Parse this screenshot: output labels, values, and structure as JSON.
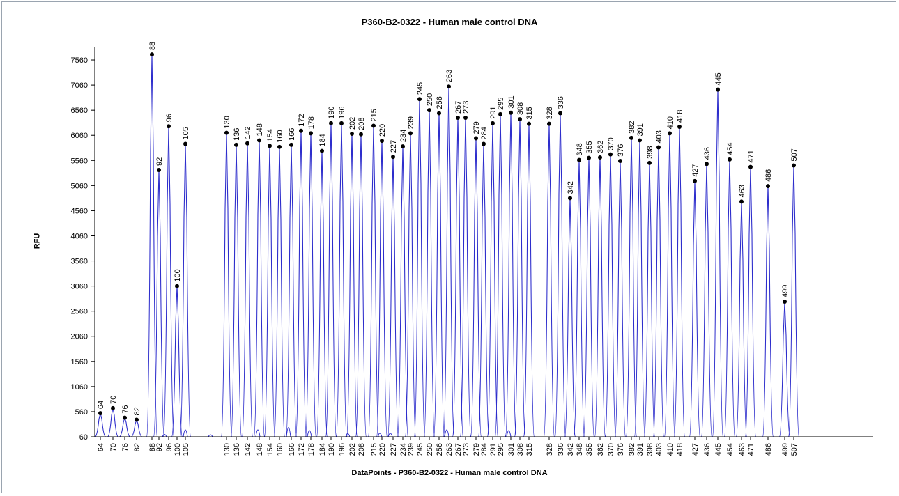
{
  "chart_data": {
    "type": "line",
    "title": "P360-B2-0322 - Human male control DNA",
    "xlabel": "DataPoints - P360-B2-0322 - Human male control DNA",
    "ylabel": "RFU",
    "ylim": [
      60,
      7810
    ],
    "yticks": [
      60,
      560,
      1060,
      1560,
      2060,
      2560,
      3060,
      3560,
      4060,
      4560,
      5060,
      5560,
      6060,
      6560,
      7060,
      7560
    ],
    "grid": false,
    "legend": "none",
    "line_color": "#2d2dcc",
    "peaks": [
      {
        "label": "64",
        "value": 530
      },
      {
        "label": "70",
        "value": 630
      },
      {
        "label": "76",
        "value": 440
      },
      {
        "label": "82",
        "value": 400
      },
      {
        "label": "88",
        "value": 7670
      },
      {
        "label": "92",
        "value": 5370
      },
      {
        "label": "96",
        "value": 6240
      },
      {
        "label": "100",
        "value": 3060
      },
      {
        "label": "105",
        "value": 5890
      },
      {
        "label": "130",
        "value": 6110
      },
      {
        "label": "136",
        "value": 5870
      },
      {
        "label": "142",
        "value": 5900
      },
      {
        "label": "148",
        "value": 5960
      },
      {
        "label": "154",
        "value": 5850
      },
      {
        "label": "160",
        "value": 5830
      },
      {
        "label": "166",
        "value": 5870
      },
      {
        "label": "172",
        "value": 6150
      },
      {
        "label": "178",
        "value": 6100
      },
      {
        "label": "184",
        "value": 5750
      },
      {
        "label": "190",
        "value": 6300
      },
      {
        "label": "196",
        "value": 6300
      },
      {
        "label": "202",
        "value": 6090
      },
      {
        "label": "208",
        "value": 6080
      },
      {
        "label": "215",
        "value": 6250
      },
      {
        "label": "220",
        "value": 5950
      },
      {
        "label": "227",
        "value": 5630
      },
      {
        "label": "234",
        "value": 5840
      },
      {
        "label": "239",
        "value": 6100
      },
      {
        "label": "245",
        "value": 6780
      },
      {
        "label": "250",
        "value": 6560
      },
      {
        "label": "256",
        "value": 6500
      },
      {
        "label": "263",
        "value": 7030
      },
      {
        "label": "267",
        "value": 6410
      },
      {
        "label": "273",
        "value": 6410
      },
      {
        "label": "279",
        "value": 6000
      },
      {
        "label": "284",
        "value": 5890
      },
      {
        "label": "291",
        "value": 6300
      },
      {
        "label": "295",
        "value": 6480
      },
      {
        "label": "301",
        "value": 6510
      },
      {
        "label": "308",
        "value": 6380
      },
      {
        "label": "315",
        "value": 6290
      },
      {
        "label": "328",
        "value": 6290
      },
      {
        "label": "336",
        "value": 6500
      },
      {
        "label": "342",
        "value": 4810
      },
      {
        "label": "348",
        "value": 5570
      },
      {
        "label": "355",
        "value": 5610
      },
      {
        "label": "362",
        "value": 5620
      },
      {
        "label": "370",
        "value": 5680
      },
      {
        "label": "376",
        "value": 5550
      },
      {
        "label": "382",
        "value": 6010
      },
      {
        "label": "391",
        "value": 5960
      },
      {
        "label": "398",
        "value": 5510
      },
      {
        "label": "403",
        "value": 5820
      },
      {
        "label": "410",
        "value": 6100
      },
      {
        "label": "418",
        "value": 6230
      },
      {
        "label": "427",
        "value": 5150
      },
      {
        "label": "436",
        "value": 5490
      },
      {
        "label": "445",
        "value": 6970
      },
      {
        "label": "454",
        "value": 5580
      },
      {
        "label": "463",
        "value": 4740
      },
      {
        "label": "471",
        "value": 5430
      },
      {
        "label": "486",
        "value": 5050
      },
      {
        "label": "499",
        "value": 2750
      },
      {
        "label": "507",
        "value": 5460
      }
    ]
  }
}
